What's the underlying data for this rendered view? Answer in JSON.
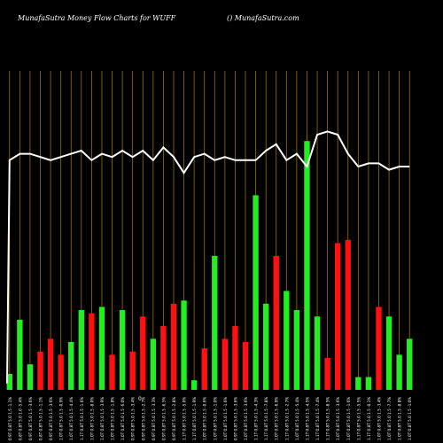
{
  "header": {
    "left_title": "MunafaSutra  Money Flow  Charts for WUFF",
    "right_title": "() MunafaSutra.com"
  },
  "colors": {
    "background": "#000000",
    "gridline": "#b8860b",
    "bar_up": "#22ee22",
    "bar_down": "#ff1111",
    "price_line": "#ffffff"
  },
  "chart_data": {
    "type": "bar",
    "title": "MunafaSutra  Money Flow  Charts for WUFF",
    "xlabel": "",
    "ylabel": "",
    "ylim": [
      0,
      100
    ],
    "grid": true,
    "legend": "none",
    "series": [
      {
        "kind": "money-flow bars",
        "values": [
          5,
          22,
          8,
          12,
          16,
          11,
          15,
          25,
          24,
          26,
          11,
          25,
          12,
          23,
          16,
          20,
          27,
          28,
          3,
          13,
          42,
          16,
          20,
          15,
          61,
          27,
          42,
          31,
          25,
          78,
          23,
          10,
          46,
          47,
          4,
          4,
          26,
          23,
          11,
          16
        ],
        "directions": [
          "up",
          "up",
          "up",
          "down",
          "down",
          "down",
          "up",
          "up",
          "down",
          "up",
          "down",
          "up",
          "down",
          "down",
          "up",
          "down",
          "down",
          "up",
          "up",
          "down",
          "up",
          "down",
          "down",
          "down",
          "up",
          "up",
          "down",
          "up",
          "up",
          "up",
          "up",
          "down",
          "down",
          "down",
          "up",
          "up",
          "down",
          "up",
          "up",
          "up"
        ]
      },
      {
        "kind": "price line",
        "values": [
          72,
          74,
          74,
          73,
          72,
          73,
          74,
          75,
          72,
          74,
          73,
          75,
          73,
          75,
          72,
          76,
          73,
          68,
          73,
          74,
          72,
          73,
          72,
          72,
          72,
          75,
          77,
          72,
          74,
          70,
          80,
          81,
          80,
          74,
          70,
          71,
          71,
          69,
          70,
          70
        ]
      }
    ],
    "x_tick_labels": [
      "0.9T 0.8T 5.0 1.5 -1.1%",
      "0.8T 0.8T 5.0 1.0 -5.4%",
      "0.9T 0.8T 5.0 1.5 -3.6%",
      "0.8T 0.8T 5.0 1.5 -1.1%",
      "0.9T 0.8T 5.0 1.5 -3.6%",
      "1.0T 0.8T 5.0 1.5 -0.9%",
      "1.0T 0.8T 5.0 1.5 -4.4%",
      "1.1T 0.8T 5.0 1.5 -1.6%",
      "1.0T 0.8T 5.0 1.5 -8.0%",
      "1.0T 0.8T 5.0 1.5 -3.9%",
      "1.0T 0.8T 5.0 1.5 -1.8%",
      "1.0T 0.8T 5.0 1.5 -6.0%",
      "0.9T 0.8T 5.0 1.5 -3.4%",
      "0.9T 0.8T 5.0 1.5 -2.7%",
      "0.9T 0.8T 5.0 1.5 -3.3%",
      "0.9T 0.8T 5.0 1.5 -6.5%",
      "0.9T 0.8T 5.0 1.5 -2.8%",
      "1.1T 0.8T 5.0 1.5 -5.0%",
      "1.1T 0.8T 5.0 1.5 -1.9%",
      "1.0T 0.8T 5.0 1.5 -0.6%",
      "1.0T 0.8T 5.0 1.5 -1.0%",
      "1.0T 0.8T 5.0 1.5 -1.6%",
      "0.9T 0.8T 5.0 1.5 -3.6%",
      "1.0T 0.8T 5.0 1.5 -3.6%",
      "1.1T 0.8T 5.0 1.5 -4.3%",
      "1.1T 0.8T 5.0 1.5 -7.8%",
      "1.0T 0.8T 5.0 1.5 -6.9%",
      "1.1T 0.8T 5.0 1.5 -2.7%",
      "1.0T 0.8T 5.0 1.5 -5.4%",
      "1.1T 0.8T 5.0 1.5 -4.5%",
      "1.1T 0.8T 5.0 1.5 -7.4%",
      "1.1T 0.8T 5.0 1.5 -8.5%",
      "1.0T 0.8T 5.0 1.5 -3.6%",
      "1.0T 0.8T 5.0 1.5 -1.6%",
      "1.1T 0.8T 5.0 1.5 -5.5%",
      "1.1T 0.8T 5.0 1.5 -0.1%",
      "1.0T 0.8T 5.0 1.5 -3.4%",
      "1.0T 0.8T 5.0 1.5 -7.7%",
      "1.0T 0.8T 5.0 1.5 -8.8%",
      "1.0T 0.8T 5.0 1.5 -1.0%"
    ],
    "tick_label_note": "Tick label text is rendered in a tiny rotated font and is largely illegible in the screenshot.",
    "axis_marker": "0"
  }
}
